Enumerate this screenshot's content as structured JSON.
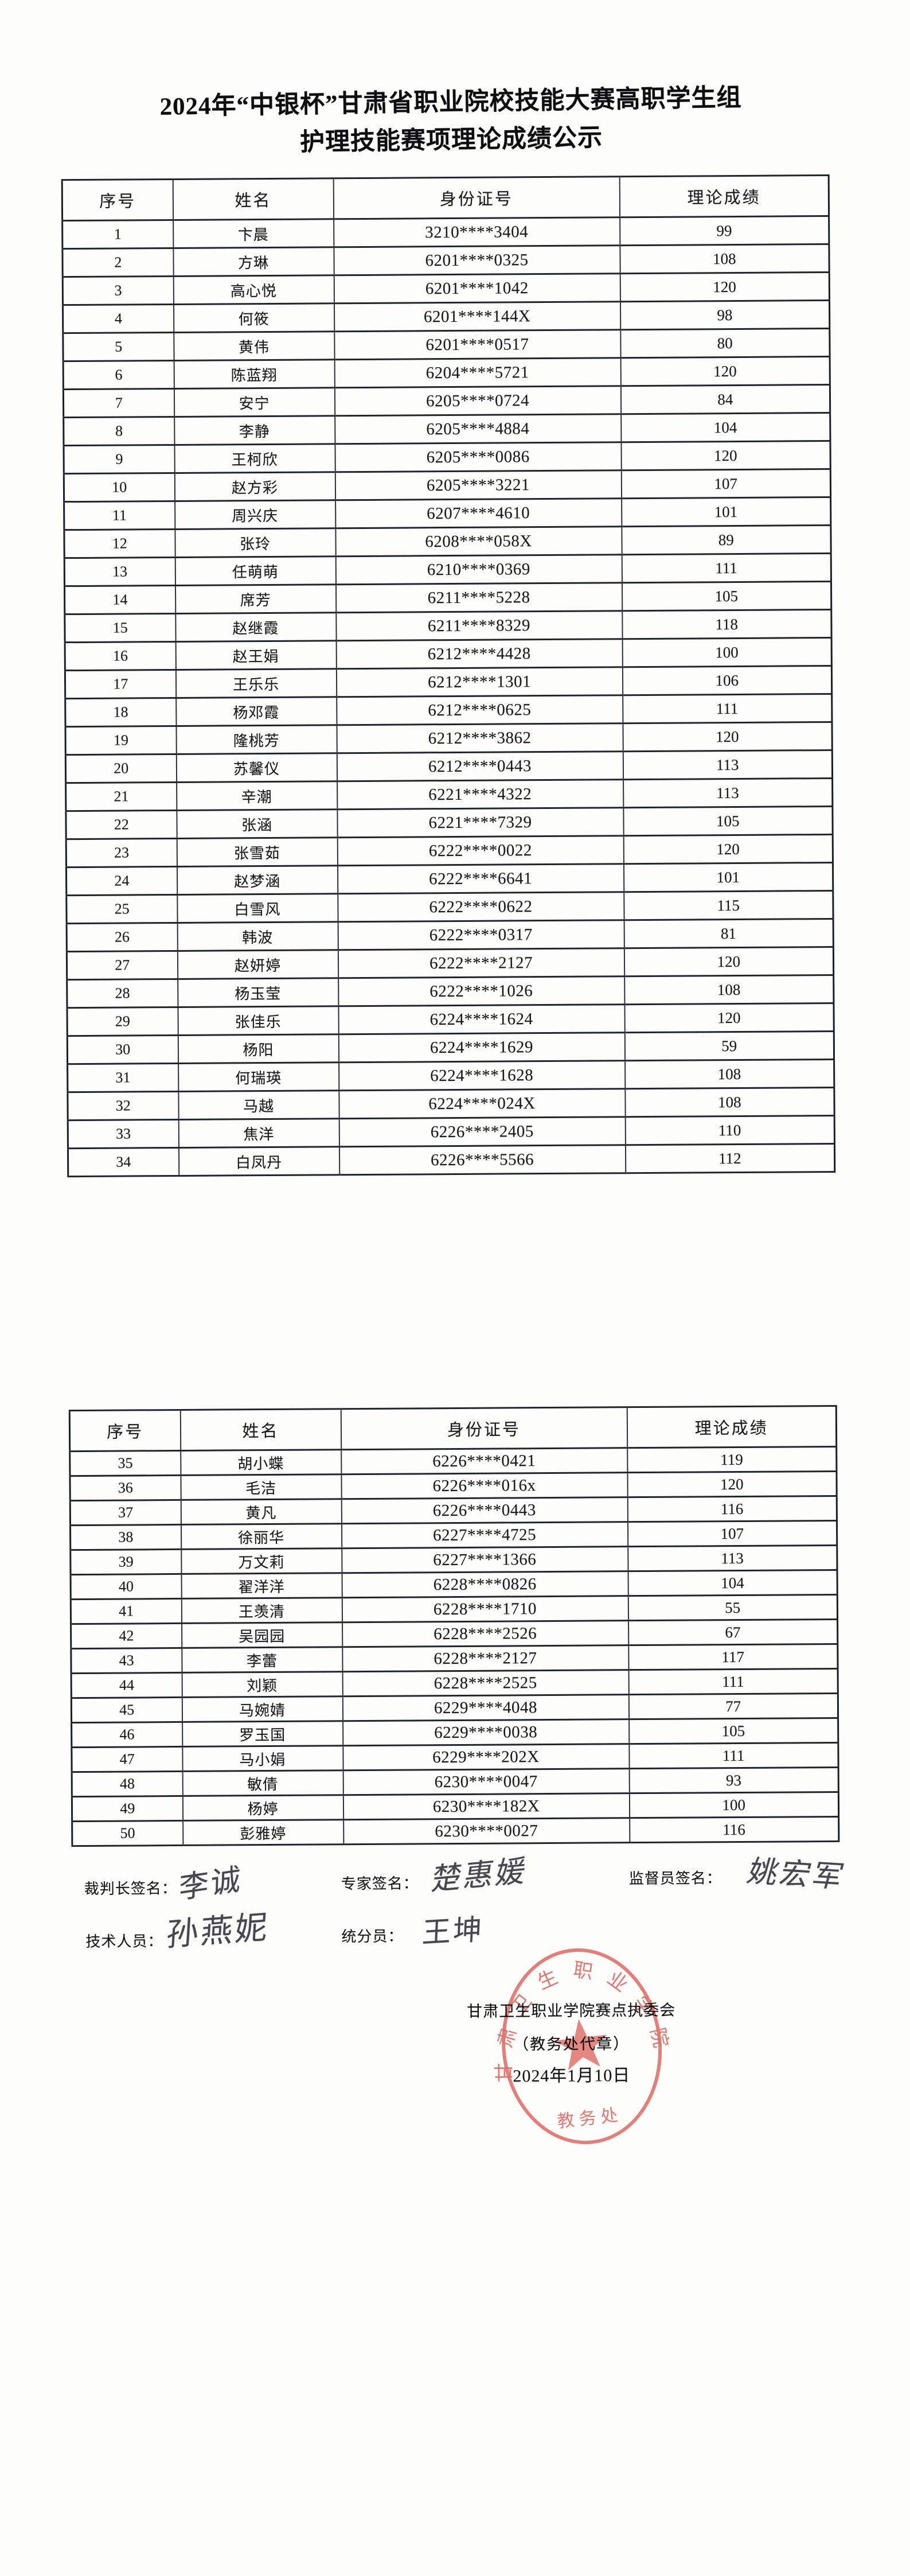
{
  "title": {
    "line1": "2024年“中银杯”甘肃省职业院校技能大赛高职学生组",
    "line2": "护理技能赛项理论成绩公示"
  },
  "table_headers": [
    "序号",
    "姓名",
    "身份证号",
    "理论成绩"
  ],
  "tables": [
    {
      "rows": [
        [
          "1",
          "卞晨",
          "3210****3404",
          "99"
        ],
        [
          "2",
          "方琳",
          "6201****0325",
          "108"
        ],
        [
          "3",
          "高心悦",
          "6201****1042",
          "120"
        ],
        [
          "4",
          "何筱",
          "6201****144X",
          "98"
        ],
        [
          "5",
          "黄伟",
          "6201****0517",
          "80"
        ],
        [
          "6",
          "陈蓝翔",
          "6204****5721",
          "120"
        ],
        [
          "7",
          "安宁",
          "6205****0724",
          "84"
        ],
        [
          "8",
          "李静",
          "6205****4884",
          "104"
        ],
        [
          "9",
          "王柯欣",
          "6205****0086",
          "120"
        ],
        [
          "10",
          "赵方彩",
          "6205****3221",
          "107"
        ],
        [
          "11",
          "周兴庆",
          "6207****4610",
          "101"
        ],
        [
          "12",
          "张玲",
          "6208****058X",
          "89"
        ],
        [
          "13",
          "任萌萌",
          "6210****0369",
          "111"
        ],
        [
          "14",
          "席芳",
          "6211****5228",
          "105"
        ],
        [
          "15",
          "赵继霞",
          "6211****8329",
          "118"
        ],
        [
          "16",
          "赵王娟",
          "6212****4428",
          "100"
        ],
        [
          "17",
          "王乐乐",
          "6212****1301",
          "106"
        ],
        [
          "18",
          "杨邓霞",
          "6212****0625",
          "111"
        ],
        [
          "19",
          "隆桃芳",
          "6212****3862",
          "120"
        ],
        [
          "20",
          "苏馨仪",
          "6212****0443",
          "113"
        ],
        [
          "21",
          "辛潮",
          "6221****4322",
          "113"
        ],
        [
          "22",
          "张涵",
          "6221****7329",
          "105"
        ],
        [
          "23",
          "张雪茹",
          "6222****0022",
          "120"
        ],
        [
          "24",
          "赵梦涵",
          "6222****6641",
          "101"
        ],
        [
          "25",
          "白雪风",
          "6222****0622",
          "115"
        ],
        [
          "26",
          "韩波",
          "6222****0317",
          "81"
        ],
        [
          "27",
          "赵妍婷",
          "6222****2127",
          "120"
        ],
        [
          "28",
          "杨玉莹",
          "6222****1026",
          "108"
        ],
        [
          "29",
          "张佳乐",
          "6224****1624",
          "120"
        ],
        [
          "30",
          "杨阳",
          "6224****1629",
          "59"
        ],
        [
          "31",
          "何瑞瑛",
          "6224****1628",
          "108"
        ],
        [
          "32",
          "马越",
          "6224****024X",
          "108"
        ],
        [
          "33",
          "焦洋",
          "6226****2405",
          "110"
        ],
        [
          "34",
          "白凤丹",
          "6226****5566",
          "112"
        ]
      ]
    },
    {
      "rows": [
        [
          "35",
          "胡小蝶",
          "6226****0421",
          "119"
        ],
        [
          "36",
          "毛洁",
          "6226****016x",
          "120"
        ],
        [
          "37",
          "黄凡",
          "6226****0443",
          "116"
        ],
        [
          "38",
          "徐丽华",
          "6227****4725",
          "107"
        ],
        [
          "39",
          "万文莉",
          "6227****1366",
          "113"
        ],
        [
          "40",
          "翟洋洋",
          "6228****0826",
          "104"
        ],
        [
          "41",
          "王羡清",
          "6228****1710",
          "55"
        ],
        [
          "42",
          "吴园园",
          "6228****2526",
          "67"
        ],
        [
          "43",
          "李蕾",
          "6228****2127",
          "117"
        ],
        [
          "44",
          "刘颖",
          "6228****2525",
          "111"
        ],
        [
          "45",
          "马婉婧",
          "6229****4048",
          "77"
        ],
        [
          "46",
          "罗玉国",
          "6229****0038",
          "105"
        ],
        [
          "47",
          "马小娟",
          "6229****202X",
          "111"
        ],
        [
          "48",
          "敏倩",
          "6230****0047",
          "93"
        ],
        [
          "49",
          "杨婷",
          "6230****182X",
          "100"
        ],
        [
          "50",
          "彭雅婷",
          "6230****0027",
          "116"
        ]
      ]
    }
  ],
  "signatures": {
    "judge_label": "裁判长签名：",
    "judge_name": "李诚",
    "expert_label": "专家签名：",
    "expert_name": "楚惠媛",
    "supervisor_label": "监督员签名：",
    "supervisor_name": "姚宏军",
    "technician_label": "技术人员：",
    "technician_name": "孙燕妮",
    "scorer_label": "统分员：",
    "scorer_name": "王坤"
  },
  "committee": {
    "line1": "甘肃卫生职业学院赛点执委会",
    "line2": "（教务处代章）",
    "line3": "2024年1月10日"
  },
  "stamp": {
    "ring_text": "甘肃卫生职业学院",
    "bottom_text": "教务处",
    "color": "#d85850"
  }
}
